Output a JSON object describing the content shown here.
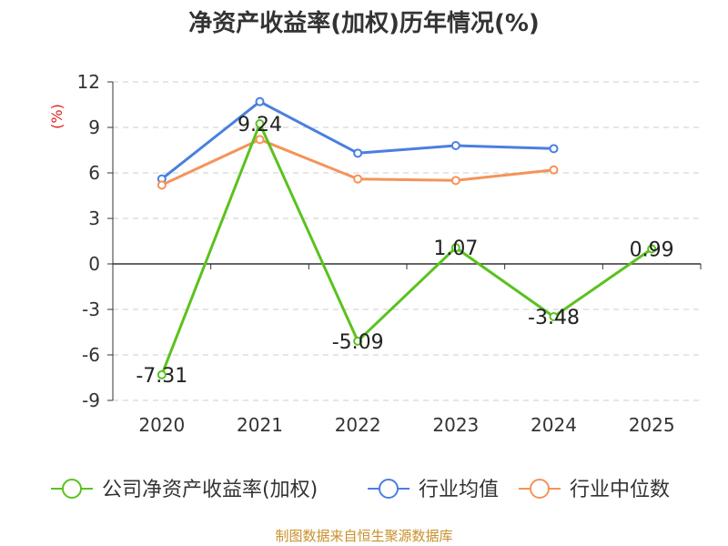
{
  "chart_data": {
    "type": "line",
    "title": "净资产收益率(加权)历年情况(%)",
    "ylabel": "(%)",
    "xlabel": "",
    "categories": [
      "2020",
      "2021",
      "2022",
      "2023",
      "2024",
      "2025"
    ],
    "ylim": [
      -9,
      12
    ],
    "yticks": [
      "12",
      "9",
      "6",
      "3",
      "0",
      "-3",
      "-6",
      "-9"
    ],
    "grid": true,
    "legend_position": "bottom",
    "series": [
      {
        "name": "公司净资产收益率(加权)",
        "color": "#5ac21e",
        "values": [
          -7.31,
          9.24,
          -5.09,
          1.07,
          -3.48,
          0.99
        ],
        "labels": [
          "-7.31",
          "9.24",
          "-5.09",
          "1.07",
          "-3.48",
          "0.99"
        ]
      },
      {
        "name": "行业均值",
        "color": "#4a7fe0",
        "values": [
          5.6,
          10.7,
          7.3,
          7.8,
          7.6,
          null
        ]
      },
      {
        "name": "行业中位数",
        "color": "#f5935a",
        "values": [
          5.2,
          8.2,
          5.6,
          5.5,
          6.2,
          null
        ]
      }
    ],
    "source": "制图数据来自恒生聚源数据库"
  }
}
